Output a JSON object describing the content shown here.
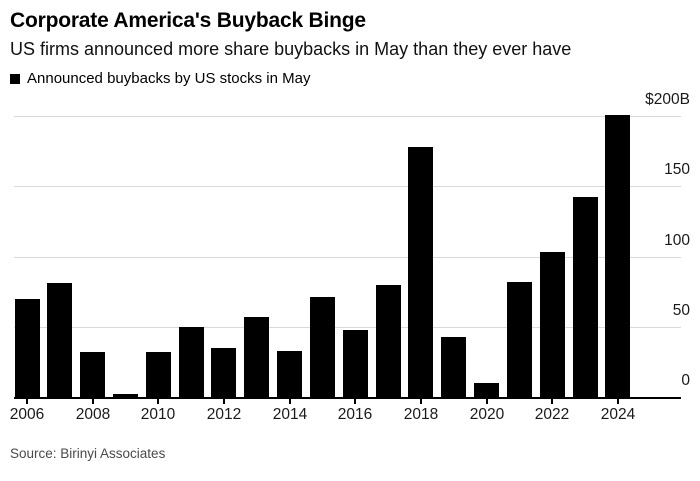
{
  "header": {
    "title": "Corporate America's Buyback Binge",
    "subtitle": "US firms announced more share buybacks in May than they ever have"
  },
  "legend": {
    "label": "Announced buybacks by US stocks in May",
    "marker_color": "#000000"
  },
  "source": "Source: Birinyi Associates",
  "colors": {
    "bar": "#000000",
    "grid": "#d9d9d9",
    "axis": "#000000",
    "text": "#1a1a1a"
  },
  "chart_data": {
    "type": "bar",
    "title": "Corporate America's Buyback Binge",
    "subtitle": "US firms announced more share buybacks in May than they ever have",
    "series_name": "Announced buybacks by US stocks in May",
    "unit": "billion USD",
    "x": [
      2006,
      2007,
      2008,
      2009,
      2010,
      2011,
      2012,
      2013,
      2014,
      2015,
      2016,
      2017,
      2018,
      2019,
      2020,
      2021,
      2022,
      2023,
      2024
    ],
    "values": [
      70,
      81,
      32,
      2,
      32,
      50,
      35,
      57,
      33,
      71,
      48,
      80,
      178,
      43,
      10,
      82,
      103,
      142,
      201
    ],
    "xlabel": "",
    "ylabel": "",
    "ylim": [
      0,
      205
    ],
    "y_ticks": [
      {
        "value": 0,
        "label": "0"
      },
      {
        "value": 50,
        "label": "50"
      },
      {
        "value": 100,
        "label": "100"
      },
      {
        "value": 150,
        "label": "150"
      },
      {
        "value": 200,
        "label": "$200B"
      }
    ],
    "x_tick_labels": [
      "2006",
      "2008",
      "2010",
      "2012",
      "2014",
      "2016",
      "2018",
      "2020",
      "2022",
      "2024"
    ],
    "grid": "horizontal",
    "legend_position": "top-left",
    "axis_side": "right"
  }
}
